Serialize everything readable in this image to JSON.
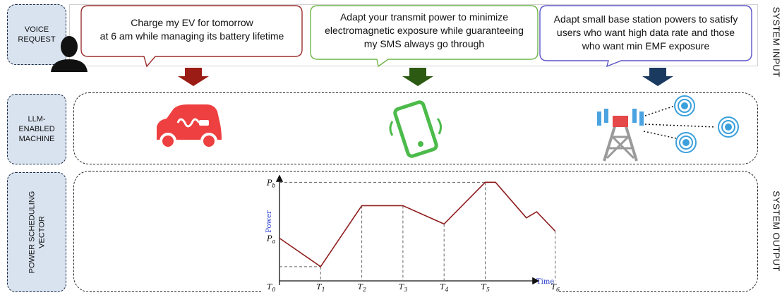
{
  "rows": {
    "voice_request": "VOICE\nREQUEST",
    "llm_machine": "LLM-\nENABLED\nMACHINE",
    "power_vector": "POWER SCHEDULING\nVECTOR"
  },
  "side": {
    "input": "SYSTEM INPUT",
    "output": "SYSTEM OUTPUT"
  },
  "bubbles": [
    {
      "text": "Charge my EV for tomorrow\nat 6 am while managing its battery lifetime",
      "color": "#9b2f2f"
    },
    {
      "text": "Adapt your transmit power to minimize\nelectromagnetic exposure while guaranteeing\nmy SMS always go through",
      "color": "#6fb54a"
    },
    {
      "text": "Adapt small base station powers to satisfy\nusers who want high data rate  and those\nwho want min EMF exposure",
      "color": "#5b55c9"
    }
  ],
  "arrows": {
    "colors": [
      "#9b1c14",
      "#2d5a13",
      "#1b3a60"
    ]
  },
  "icons": {
    "car": "electric-car-icon",
    "phone": "vibrating-phone-icon",
    "tower": "base-station-icon",
    "user": "user-silhouette-icon"
  },
  "chart_data": {
    "type": "line",
    "x_ticks": [
      "T_0",
      "T_1",
      "T_2",
      "T_3",
      "T_4",
      "T_5",
      "T_6"
    ],
    "y_ticks": [
      "P_a",
      "P_b"
    ],
    "xlabel": "Time",
    "ylabel": "Power",
    "points": [
      [
        0,
        0.42
      ],
      [
        1,
        0.14
      ],
      [
        2,
        0.74
      ],
      [
        3,
        0.74
      ],
      [
        4,
        0.56
      ],
      [
        5,
        0.97
      ],
      [
        5.25,
        0.97
      ],
      [
        6,
        0.62
      ],
      [
        6.25,
        0.68
      ],
      [
        6.7,
        0.49
      ]
    ],
    "color": "#8f1d1d"
  }
}
